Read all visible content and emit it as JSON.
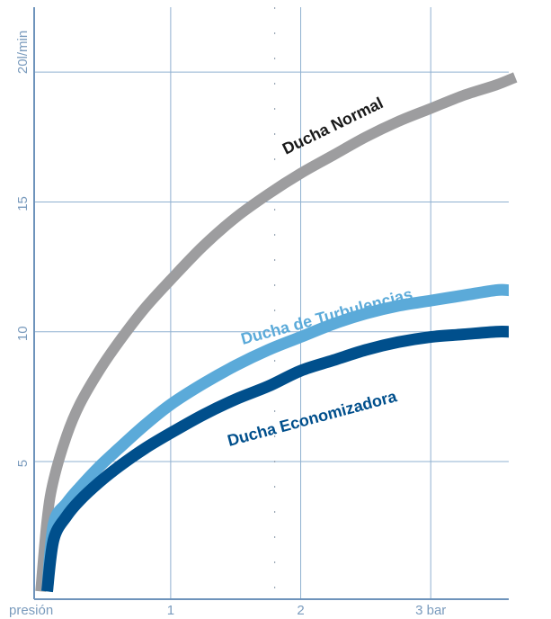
{
  "chart_data": {
    "type": "line",
    "x_tick_labels": [
      "presión",
      "1",
      "2",
      "3 bar"
    ],
    "x_ticks": [
      0,
      1,
      2,
      3
    ],
    "y_tick_labels": [
      "5",
      "10",
      "15",
      "20l/min"
    ],
    "y_ticks": [
      5,
      10,
      15,
      20
    ],
    "xlim": [
      -0.05,
      3.6
    ],
    "ylim": [
      -0.3,
      22.5
    ],
    "grid": true,
    "series": [
      {
        "name": "Ducha Normal",
        "color": "#9d9d9f",
        "x": [
          0.0,
          0.05,
          0.1,
          0.2,
          0.3,
          0.45,
          0.6,
          0.8,
          1.0,
          1.25,
          1.5,
          1.75,
          2.0,
          2.25,
          2.5,
          2.75,
          3.0,
          3.25,
          3.5,
          3.65
        ],
        "y": [
          0.0,
          2.8,
          4.3,
          6.0,
          7.2,
          8.5,
          9.6,
          10.9,
          12.0,
          13.3,
          14.4,
          15.3,
          16.1,
          16.8,
          17.5,
          18.1,
          18.6,
          19.1,
          19.5,
          19.8
        ]
      },
      {
        "name": "Ducha de Turbulencias",
        "color": "#5baad9",
        "x": [
          0.05,
          0.1,
          0.2,
          0.3,
          0.45,
          0.6,
          0.8,
          1.0,
          1.25,
          1.5,
          1.75,
          2.0,
          2.25,
          2.5,
          2.75,
          3.0,
          3.25,
          3.5,
          3.6
        ],
        "y": [
          0.0,
          2.6,
          3.4,
          4.0,
          4.8,
          5.5,
          6.4,
          7.2,
          8.0,
          8.7,
          9.3,
          9.8,
          10.3,
          10.7,
          11.0,
          11.2,
          11.4,
          11.6,
          11.6
        ]
      },
      {
        "name": "Ducha Economizadora",
        "color": "#004f8c",
        "x": [
          0.05,
          0.1,
          0.2,
          0.3,
          0.45,
          0.6,
          0.8,
          1.0,
          1.25,
          1.5,
          1.75,
          2.0,
          2.25,
          2.5,
          2.75,
          3.0,
          3.25,
          3.5,
          3.6
        ],
        "y": [
          0.0,
          2.0,
          2.9,
          3.5,
          4.2,
          4.8,
          5.5,
          6.1,
          6.8,
          7.4,
          7.9,
          8.5,
          8.9,
          9.3,
          9.6,
          9.8,
          9.9,
          10.0,
          10.0
        ]
      }
    ]
  }
}
